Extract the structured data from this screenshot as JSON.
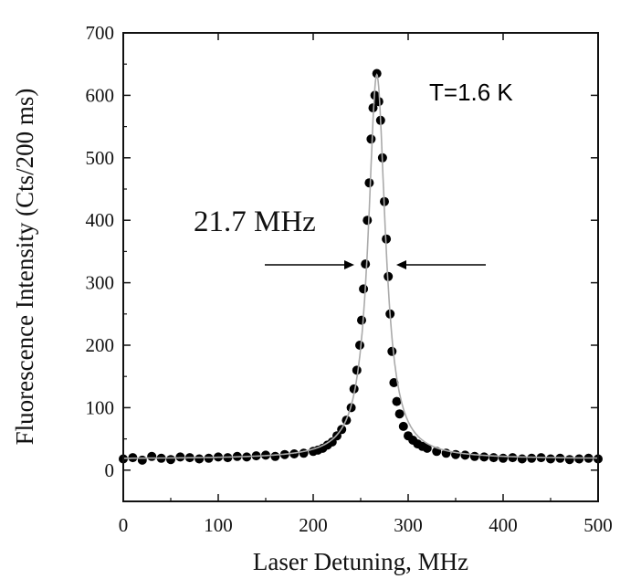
{
  "chart_data": {
    "type": "scatter",
    "title": "",
    "xlabel": "Laser Detuning, MHz",
    "ylabel": "Fluorescence Intensity (Cts/200 ms)",
    "xlim": [
      0,
      500
    ],
    "ylim": [
      -50,
      700
    ],
    "x_ticks": [
      0,
      100,
      200,
      300,
      400,
      500
    ],
    "y_ticks": [
      0,
      100,
      200,
      300,
      400,
      500,
      600,
      700
    ],
    "grid": false,
    "annotations": {
      "linewidth_label": "21.7 MHz",
      "temperature_label": "T=1.6 K"
    },
    "series": [
      {
        "kind": "points",
        "x": [
          0,
          10,
          20,
          30,
          40,
          50,
          60,
          70,
          80,
          90,
          100,
          110,
          120,
          130,
          140,
          150,
          160,
          170,
          180,
          190,
          200,
          205,
          210,
          215,
          220,
          225,
          230,
          235,
          240,
          243,
          246,
          249,
          251,
          253,
          255,
          257,
          259,
          261,
          263,
          265,
          267,
          269,
          271,
          273,
          275,
          277,
          279,
          281,
          283,
          285,
          288,
          291,
          295,
          300,
          305,
          310,
          315,
          320,
          330,
          340,
          350,
          360,
          370,
          380,
          390,
          400,
          410,
          420,
          430,
          440,
          450,
          460,
          470,
          480,
          490,
          500
        ],
        "y": [
          18,
          20,
          16,
          22,
          19,
          17,
          21,
          20,
          18,
          19,
          21,
          20,
          22,
          21,
          23,
          24,
          22,
          25,
          26,
          27,
          30,
          32,
          35,
          40,
          45,
          55,
          65,
          80,
          100,
          130,
          160,
          200,
          240,
          290,
          330,
          400,
          460,
          530,
          580,
          600,
          635,
          590,
          560,
          500,
          430,
          370,
          310,
          250,
          190,
          140,
          110,
          90,
          70,
          55,
          48,
          42,
          38,
          35,
          30,
          27,
          25,
          24,
          22,
          21,
          20,
          19,
          20,
          18,
          19,
          20,
          18,
          19,
          17,
          18,
          19,
          18
        ]
      },
      {
        "kind": "fit-line",
        "center": 267,
        "fwhm": 21.7,
        "amplitude": 615,
        "baseline": 18,
        "color": "#aaaaaa"
      }
    ]
  }
}
